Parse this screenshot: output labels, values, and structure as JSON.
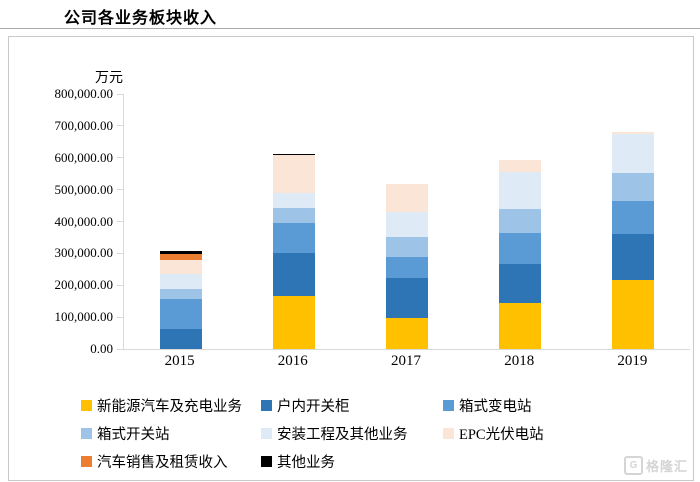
{
  "title": "公司各业务板块收入",
  "watermark": {
    "logo_letter": "G",
    "text": "格隆汇"
  },
  "chart_data": {
    "type": "bar",
    "stacked": true,
    "title": "公司各业务板块收入",
    "unit_label": "万元",
    "categories": [
      "2015",
      "2016",
      "2017",
      "2018",
      "2019"
    ],
    "ylim": [
      0,
      800000
    ],
    "ytick_step": 100000,
    "ytick_labels": [
      "0.00",
      "100,000.00",
      "200,000.00",
      "300,000.00",
      "400,000.00",
      "500,000.00",
      "600,000.00",
      "700,000.00",
      "800,000.00"
    ],
    "grid": false,
    "legend_position": "bottom",
    "series": [
      {
        "name": "新能源汽车及充电业务",
        "color": "#FFC000",
        "values": [
          0,
          165000,
          97000,
          145000,
          216000
        ]
      },
      {
        "name": "户内开关柜",
        "color": "#2E75B6",
        "values": [
          63000,
          135000,
          125000,
          122000,
          144000
        ]
      },
      {
        "name": "箱式变电站",
        "color": "#5B9BD5",
        "values": [
          94000,
          94000,
          66000,
          96000,
          103000
        ]
      },
      {
        "name": "箱式开关站",
        "color": "#9DC3E6",
        "values": [
          31000,
          47000,
          63000,
          75000,
          88000
        ]
      },
      {
        "name": "安装工程及其他业务",
        "color": "#DEEBF7",
        "values": [
          47000,
          47000,
          78000,
          118000,
          125000
        ]
      },
      {
        "name": "EPC光伏电站",
        "color": "#FBE5D6",
        "values": [
          44000,
          120000,
          88000,
          38000,
          6000
        ]
      },
      {
        "name": "汽车销售及租赁收入",
        "color": "#ED7D31",
        "values": [
          19000,
          0,
          0,
          0,
          0
        ]
      },
      {
        "name": "其他业务",
        "color": "#000000",
        "values": [
          9000,
          5000,
          0,
          0,
          0
        ]
      }
    ]
  }
}
